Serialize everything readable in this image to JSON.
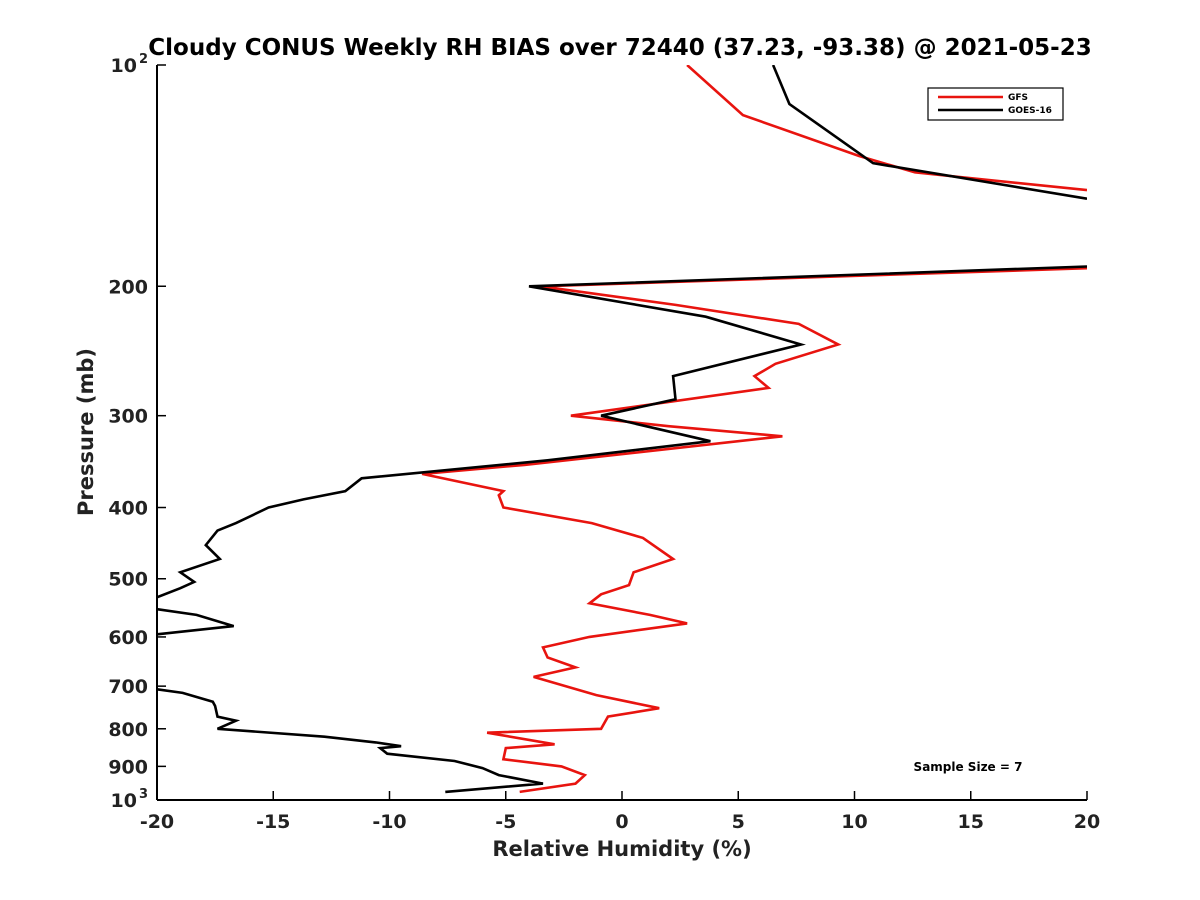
{
  "chart_data": {
    "type": "line",
    "title": "Cloudy CONUS Weekly RH BIAS over 72440 (37.23, -93.38) @ 2021-05-23",
    "xlabel": "Relative Humidity (%)",
    "ylabel": "Pressure (mb)",
    "xlim": [
      -20,
      20
    ],
    "ylim": [
      1000,
      100
    ],
    "y_scale": "log",
    "y_reversed": true,
    "x_ticks": [
      "-20",
      "-15",
      "-10",
      "-5",
      "0",
      "5",
      "10",
      "15",
      "20"
    ],
    "y_ticks": [
      {
        "value": 100,
        "base": "10",
        "exp": "2"
      },
      {
        "value": 200,
        "label": "200"
      },
      {
        "value": 300,
        "label": "300"
      },
      {
        "value": 400,
        "label": "400"
      },
      {
        "value": 500,
        "label": "500"
      },
      {
        "value": 600,
        "label": "600"
      },
      {
        "value": 700,
        "label": "700"
      },
      {
        "value": 800,
        "label": "800"
      },
      {
        "value": 900,
        "label": "900"
      },
      {
        "value": 1000,
        "base": "10",
        "exp": "3"
      }
    ],
    "grid": false,
    "legend_position": "top-right",
    "annotation": "Sample Size = 7",
    "series": [
      {
        "name": "GFS",
        "color": "#e8140f",
        "points": [
          [
            -4.4,
            975
          ],
          [
            -2.0,
            950
          ],
          [
            -1.6,
            925
          ],
          [
            -2.6,
            900
          ],
          [
            -5.1,
            880
          ],
          [
            -5.0,
            850
          ],
          [
            -2.9,
            840
          ],
          [
            -5.8,
            810
          ],
          [
            -0.9,
            800
          ],
          [
            -0.6,
            770
          ],
          [
            1.6,
            750
          ],
          [
            -1.1,
            720
          ],
          [
            -3.8,
            680
          ],
          [
            -2.0,
            660
          ],
          [
            -3.2,
            640
          ],
          [
            -3.4,
            620
          ],
          [
            -1.4,
            600
          ],
          [
            2.8,
            575
          ],
          [
            1.2,
            560
          ],
          [
            -1.4,
            540
          ],
          [
            -0.9,
            525
          ],
          [
            0.3,
            510
          ],
          [
            0.5,
            490
          ],
          [
            2.2,
            470
          ],
          [
            0.9,
            440
          ],
          [
            -1.3,
            420
          ],
          [
            -5.1,
            400
          ],
          [
            -5.3,
            385
          ],
          [
            -5.1,
            380
          ],
          [
            -8.6,
            360
          ],
          [
            -4.2,
            350
          ],
          [
            6.9,
            320
          ],
          [
            2.0,
            310
          ],
          [
            -2.2,
            300
          ],
          [
            6.3,
            275
          ],
          [
            5.7,
            265
          ],
          [
            6.6,
            255
          ],
          [
            9.3,
            240
          ],
          [
            7.6,
            225
          ],
          [
            2.3,
            212
          ],
          [
            -3.5,
            200
          ],
          [
            20.0,
            189
          ]
        ],
        "upper_points": [
          [
            20.0,
            148
          ],
          [
            12.6,
            140
          ],
          [
            10.2,
            133
          ],
          [
            5.2,
            117
          ],
          [
            2.8,
            100
          ]
        ]
      },
      {
        "name": "GOES-16",
        "color": "#000000",
        "points": [
          [
            -7.6,
            975
          ],
          [
            -3.4,
            950
          ],
          [
            -5.3,
            925
          ],
          [
            -6.0,
            905
          ],
          [
            -7.2,
            885
          ],
          [
            -10.1,
            865
          ],
          [
            -10.4,
            850
          ],
          [
            -9.5,
            845
          ],
          [
            -10.6,
            835
          ],
          [
            -12.8,
            820
          ],
          [
            -17.4,
            800
          ],
          [
            -16.6,
            780
          ],
          [
            -17.4,
            770
          ],
          [
            -17.5,
            745
          ],
          [
            -17.6,
            735
          ],
          [
            -18.9,
            715
          ],
          [
            -20.0,
            707
          ],
          [
            -20.3,
            690
          ],
          [
            -20.3,
            630
          ],
          [
            -20.0,
            595
          ],
          [
            -16.7,
            580
          ],
          [
            -18.3,
            560
          ],
          [
            -20.0,
            550
          ],
          [
            -20.3,
            540
          ],
          [
            -20.0,
            530
          ],
          [
            -19.0,
            515
          ],
          [
            -18.4,
            505
          ],
          [
            -19.0,
            490
          ],
          [
            -17.3,
            470
          ],
          [
            -17.9,
            450
          ],
          [
            -17.4,
            430
          ],
          [
            -16.6,
            420
          ],
          [
            -15.2,
            400
          ],
          [
            -13.7,
            390
          ],
          [
            -11.9,
            380
          ],
          [
            -11.2,
            365
          ],
          [
            -3.2,
            345
          ],
          [
            3.8,
            325
          ],
          [
            -0.9,
            300
          ],
          [
            2.3,
            285
          ],
          [
            2.2,
            265
          ],
          [
            7.7,
            240
          ],
          [
            3.6,
            220
          ],
          [
            -4.0,
            200
          ],
          [
            20.0,
            188
          ]
        ],
        "upper_points": [
          [
            20.0,
            152
          ],
          [
            10.8,
            136
          ],
          [
            7.2,
            113
          ],
          [
            6.5,
            100
          ]
        ]
      }
    ]
  }
}
